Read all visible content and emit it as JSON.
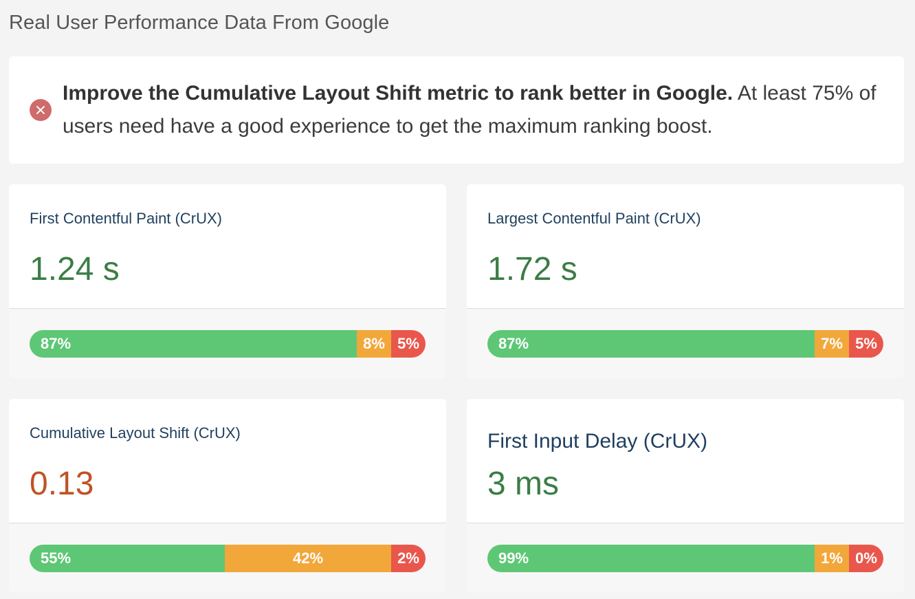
{
  "page": {
    "title": "Real User Performance Data From Google"
  },
  "alert": {
    "icon": "error-circle-x-icon",
    "bold_text": "Improve the Cumulative Layout Shift metric to rank better in Google.",
    "text": " At least 75% of users need have a good experience to get the maximum ranking boost."
  },
  "colors": {
    "good": "#5dc775",
    "needs_improvement": "#f2a73b",
    "poor": "#e9574c",
    "value_good": "#3b7d45",
    "value_poor": "#bf5324"
  },
  "metrics": [
    {
      "label": "First Contentful Paint (CrUX)",
      "value": "1.24 s",
      "status": "good",
      "distribution": [
        {
          "label": "87%",
          "percent": 87,
          "rating": "good"
        },
        {
          "label": "8%",
          "percent": 8,
          "rating": "needs-improvement"
        },
        {
          "label": "5%",
          "percent": 5,
          "rating": "poor"
        }
      ]
    },
    {
      "label": "Largest Contentful Paint (CrUX)",
      "value": "1.72 s",
      "status": "good",
      "distribution": [
        {
          "label": "87%",
          "percent": 87,
          "rating": "good"
        },
        {
          "label": "7%",
          "percent": 7,
          "rating": "needs-improvement"
        },
        {
          "label": "5%",
          "percent": 5,
          "rating": "poor"
        }
      ]
    },
    {
      "label": "Cumulative Layout Shift (CrUX)",
      "value": "0.13",
      "status": "poor",
      "distribution": [
        {
          "label": "55%",
          "percent": 55,
          "rating": "good"
        },
        {
          "label": "42%",
          "percent": 42,
          "rating": "needs-improvement"
        },
        {
          "label": "2%",
          "percent": 2,
          "rating": "poor"
        }
      ]
    },
    {
      "label": "First Input Delay (CrUX)",
      "value": "3 ms",
      "status": "good",
      "distribution": [
        {
          "label": "99%",
          "percent": 99,
          "rating": "good"
        },
        {
          "label": "1%",
          "percent": 1,
          "rating": "needs-improvement"
        },
        {
          "label": "0%",
          "percent": 0,
          "rating": "poor"
        }
      ]
    }
  ]
}
